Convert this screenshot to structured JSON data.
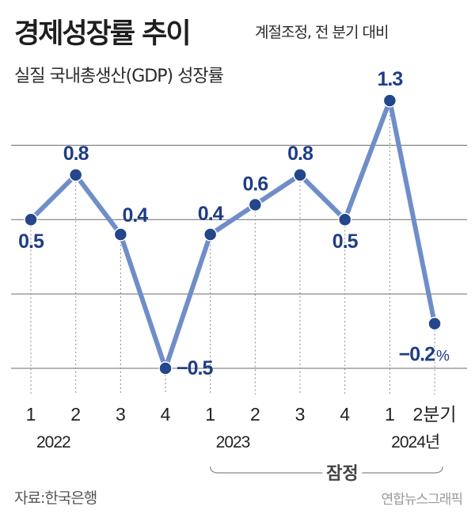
{
  "header": {
    "title": "경제성장률 추이",
    "note": "계절조정, 전 분기 대비",
    "subtitle": "실질 국내총생산(GDP) 성장률"
  },
  "footer": {
    "source": "자료:한국은행",
    "credit": "연합뉴스그래픽"
  },
  "chart_data": {
    "type": "line",
    "categories": [
      "1",
      "2",
      "3",
      "4",
      "1",
      "2",
      "3",
      "4",
      "1",
      "2분기"
    ],
    "year_labels": [
      "2022",
      "2023",
      "2024년"
    ],
    "series": [
      {
        "values": [
          0.5,
          0.8,
          0.4,
          -0.5,
          0.4,
          0.6,
          0.8,
          0.5,
          1.3,
          -0.2
        ]
      }
    ],
    "data_labels": [
      "0.5",
      "0.8",
      "0.4",
      "−0.5",
      "0.4",
      "0.6",
      "0.8",
      "0.5",
      "1.3",
      "−0.2"
    ],
    "unit": "%",
    "bracket_label": "잠정",
    "ylim": [
      -0.5,
      1.3
    ],
    "grid": true,
    "colors": {
      "line": "#6f8ec9",
      "marker": "#23468c",
      "label": "#1f3d86",
      "gridline": "#6b6b6b"
    }
  }
}
